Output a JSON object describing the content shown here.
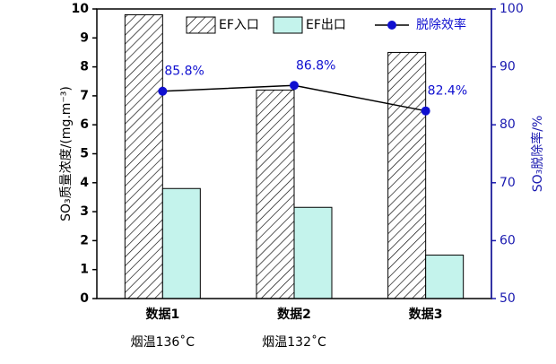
{
  "chart_data": {
    "type": "bar",
    "categories": [
      "数据1",
      "数据2",
      "数据3"
    ],
    "category_notes": [
      "烟温136˚C",
      "烟温132˚C",
      null
    ],
    "y_label": "SO₃质量浓度/(mg.m⁻³)",
    "y2_label": "SO₃脱除率/%",
    "ylim": [
      0,
      10
    ],
    "yticks": [
      0,
      1,
      2,
      3,
      4,
      5,
      6,
      7,
      8,
      9,
      10
    ],
    "y2lim": [
      50,
      100
    ],
    "y2ticks": [
      50,
      60,
      70,
      80,
      90,
      100
    ],
    "axis2_color": "#1a1ab0",
    "series": [
      {
        "name": "EF入口",
        "color": "#000000",
        "hatch": true,
        "values": [
          9.8,
          7.2,
          8.5
        ]
      },
      {
        "name": "EF出口",
        "color": "#c4f3ec",
        "hatch": false,
        "values": [
          3.8,
          3.15,
          1.5
        ]
      },
      {
        "name": "脱除效率",
        "type": "line",
        "axis": "y2",
        "color": "#1010d0",
        "values": [
          85.8,
          86.8,
          82.4
        ],
        "value_labels": [
          "85.8%",
          "86.8%",
          "82.4%"
        ]
      }
    ]
  }
}
